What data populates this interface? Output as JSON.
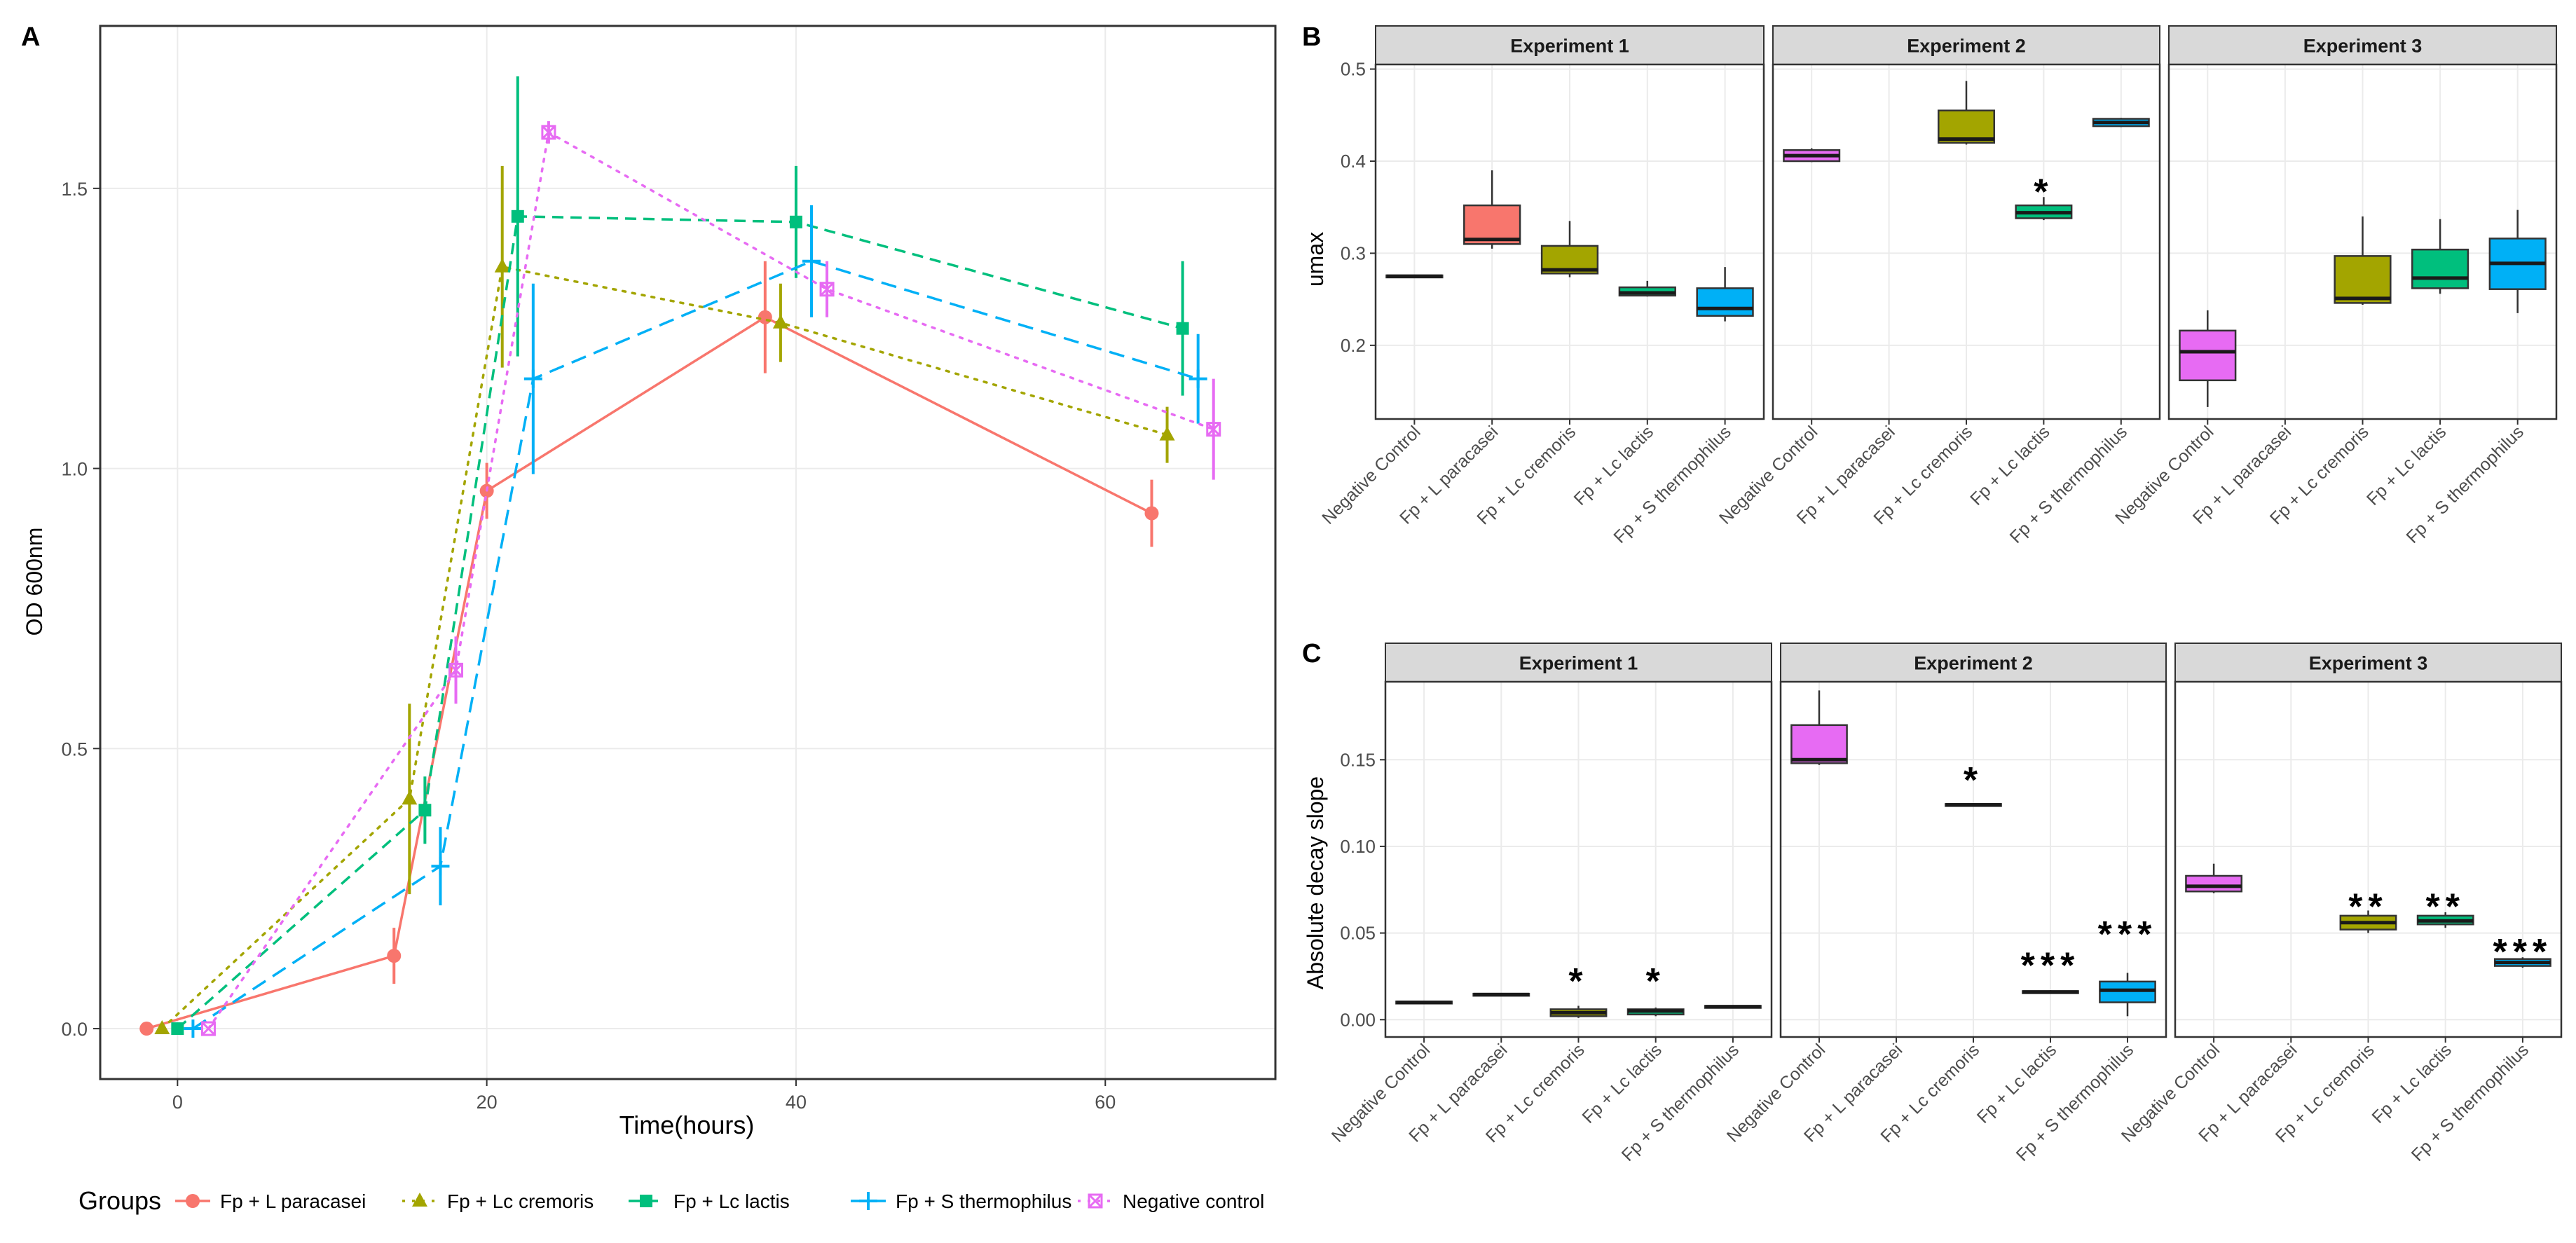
{
  "panel_letters": {
    "a": "A",
    "b": "B",
    "c": "C"
  },
  "colors": {
    "Fp + L paracasei": "#F8766D",
    "Fp + Lc cremoris": "#A3A500",
    "Fp + Lc lactis": "#00BF7D",
    "Fp + S thermophilus": "#00B0F6",
    "Negative control": "#E76BF3",
    "grid": "#EBEBEB",
    "strip": "#D9D9D9"
  },
  "chart_data": [
    {
      "id": "A",
      "type": "line",
      "xlabel": "Time(hours)",
      "ylabel": "OD 600nm",
      "xlim": [
        -5,
        71
      ],
      "ylim": [
        -0.09,
        1.79
      ],
      "xticks": [
        0,
        20,
        40,
        60
      ],
      "yticks": [
        0.0,
        0.5,
        1.0,
        1.5
      ],
      "ytick_labels": [
        "0.0",
        "0.5",
        "1.0",
        "1.5"
      ],
      "legend_title": "Groups",
      "legend_position": "bottom",
      "series": [
        {
          "name": "Fp + L paracasei",
          "marker": "circle",
          "dash": "solid",
          "x": [
            -2,
            14,
            20,
            38,
            63
          ],
          "y": [
            0.0,
            0.13,
            0.96,
            1.27,
            0.92
          ],
          "err": [
            0.0,
            0.05,
            0.05,
            0.1,
            0.06
          ]
        },
        {
          "name": "Fp + Lc cremoris",
          "marker": "triangle",
          "dash": "dotted",
          "x": [
            -1,
            15,
            21,
            39,
            64
          ],
          "y": [
            0.0,
            0.41,
            1.36,
            1.26,
            1.06
          ],
          "err": [
            0.0,
            0.17,
            0.18,
            0.07,
            0.05
          ]
        },
        {
          "name": "Fp + Lc lactis",
          "marker": "square",
          "dash": "dashed",
          "x": [
            0,
            16,
            22,
            40,
            65
          ],
          "y": [
            0.0,
            0.39,
            1.45,
            1.44,
            1.25
          ],
          "err": [
            0.0,
            0.06,
            0.25,
            0.1,
            0.12
          ]
        },
        {
          "name": "Fp + S thermophilus",
          "marker": "plus",
          "dash": "longdash",
          "x": [
            1,
            17,
            23,
            41,
            66
          ],
          "y": [
            0.0,
            0.29,
            1.16,
            1.37,
            1.16
          ],
          "err": [
            0.0,
            0.07,
            0.17,
            0.1,
            0.08
          ]
        },
        {
          "name": "Negative control",
          "marker": "squarecross",
          "dash": "dotted",
          "x": [
            2,
            18,
            24,
            42,
            67
          ],
          "y": [
            0.0,
            0.64,
            1.6,
            1.32,
            1.07
          ],
          "err": [
            0.0,
            0.06,
            0.02,
            0.05,
            0.09
          ]
        }
      ]
    },
    {
      "id": "B",
      "type": "box",
      "ylabel": "umax",
      "ylim": [
        0.12,
        0.505
      ],
      "yticks": [
        0.2,
        0.3,
        0.4,
        0.5
      ],
      "ytick_labels": [
        "0.2",
        "0.3",
        "0.4",
        "0.5"
      ],
      "categories": [
        "Negative Control",
        "Fp + L paracasei",
        "Fp + Lc cremoris",
        "Fp + Lc lactis",
        "Fp + S thermophilus"
      ],
      "box_colors": [
        "#E76BF3",
        "#F8766D",
        "#A3A500",
        "#00BF7D",
        "#00B0F6"
      ],
      "facets": [
        {
          "title": "Experiment 1",
          "boxes": [
            {
              "cat": 0,
              "lo": 0.275,
              "q1": 0.275,
              "med": 0.275,
              "q3": 0.276,
              "hi": 0.276,
              "color": "#F8766D",
              "flat": true
            },
            {
              "cat": 1,
              "lo": 0.305,
              "q1": 0.31,
              "med": 0.315,
              "q3": 0.352,
              "hi": 0.39
            },
            {
              "cat": 2,
              "lo": 0.274,
              "q1": 0.278,
              "med": 0.282,
              "q3": 0.308,
              "hi": 0.335
            },
            {
              "cat": 3,
              "lo": 0.253,
              "q1": 0.254,
              "med": 0.257,
              "q3": 0.263,
              "hi": 0.27
            },
            {
              "cat": 4,
              "lo": 0.226,
              "q1": 0.232,
              "med": 0.24,
              "q3": 0.262,
              "hi": 0.285
            }
          ],
          "sig": []
        },
        {
          "title": "Experiment 2",
          "boxes": [
            {
              "cat": 0,
              "lo": 0.399,
              "q1": 0.4,
              "med": 0.406,
              "q3": 0.412,
              "hi": 0.414
            },
            {
              "cat": 2,
              "lo": 0.418,
              "q1": 0.42,
              "med": 0.424,
              "q3": 0.455,
              "hi": 0.487
            },
            {
              "cat": 3,
              "lo": 0.336,
              "q1": 0.338,
              "med": 0.344,
              "q3": 0.352,
              "hi": 0.361
            },
            {
              "cat": 4,
              "lo": 0.437,
              "q1": 0.438,
              "med": 0.442,
              "q3": 0.446,
              "hi": 0.447
            }
          ],
          "sig": [
            {
              "cat": 3,
              "label": "*",
              "y": 0.37
            }
          ]
        },
        {
          "title": "Experiment 3",
          "boxes": [
            {
              "cat": 0,
              "lo": 0.133,
              "q1": 0.162,
              "med": 0.193,
              "q3": 0.216,
              "hi": 0.238
            },
            {
              "cat": 2,
              "lo": 0.244,
              "q1": 0.246,
              "med": 0.251,
              "q3": 0.297,
              "hi": 0.34
            },
            {
              "cat": 3,
              "lo": 0.256,
              "q1": 0.262,
              "med": 0.273,
              "q3": 0.304,
              "hi": 0.337
            },
            {
              "cat": 4,
              "lo": 0.235,
              "q1": 0.261,
              "med": 0.289,
              "q3": 0.316,
              "hi": 0.347
            }
          ],
          "sig": []
        }
      ]
    },
    {
      "id": "C",
      "type": "box",
      "ylabel": "Absolute decay slope",
      "ylim": [
        -0.01,
        0.195
      ],
      "yticks": [
        0.0,
        0.05,
        0.1,
        0.15
      ],
      "ytick_labels": [
        "0.00",
        "0.05",
        "0.10",
        "0.15"
      ],
      "categories": [
        "Negative Control",
        "Fp + L paracasei",
        "Fp + Lc cremoris",
        "Fp + Lc lactis",
        "Fp + S thermophilus"
      ],
      "box_colors": [
        "#E76BF3",
        "#F8766D",
        "#A3A500",
        "#00BF7D",
        "#00B0F6"
      ],
      "facets": [
        {
          "title": "Experiment 1",
          "boxes": [
            {
              "cat": 0,
              "lo": 0.009,
              "q1": 0.0095,
              "med": 0.01,
              "q3": 0.0105,
              "hi": 0.011,
              "color": "#A3A500",
              "flat": true
            },
            {
              "cat": 1,
              "lo": 0.014,
              "q1": 0.014,
              "med": 0.0145,
              "q3": 0.015,
              "hi": 0.015,
              "color": "#00BF7D",
              "flat": true
            },
            {
              "cat": 2,
              "lo": 0.001,
              "q1": 0.002,
              "med": 0.004,
              "q3": 0.006,
              "hi": 0.008
            },
            {
              "cat": 3,
              "lo": 0.002,
              "q1": 0.003,
              "med": 0.005,
              "q3": 0.006,
              "hi": 0.007
            },
            {
              "cat": 4,
              "lo": 0.007,
              "q1": 0.007,
              "med": 0.0075,
              "q3": 0.008,
              "hi": 0.008,
              "color": "#00B0F6",
              "flat": true
            }
          ],
          "sig": [
            {
              "cat": 2,
              "label": "*",
              "y": 0.024
            },
            {
              "cat": 3,
              "label": "*",
              "y": 0.024
            }
          ]
        },
        {
          "title": "Experiment 2",
          "boxes": [
            {
              "cat": 0,
              "lo": 0.147,
              "q1": 0.148,
              "med": 0.15,
              "q3": 0.17,
              "hi": 0.19
            },
            {
              "cat": 2,
              "lo": 0.123,
              "q1": 0.1235,
              "med": 0.124,
              "q3": 0.1245,
              "hi": 0.125,
              "flat": true
            },
            {
              "cat": 3,
              "lo": 0.015,
              "q1": 0.0155,
              "med": 0.016,
              "q3": 0.0165,
              "hi": 0.017,
              "flat": true
            },
            {
              "cat": 4,
              "lo": 0.002,
              "q1": 0.01,
              "med": 0.017,
              "q3": 0.022,
              "hi": 0.027
            }
          ],
          "sig": [
            {
              "cat": 2,
              "label": "*",
              "y": 0.14
            },
            {
              "cat": 3,
              "label": "***",
              "y": 0.033
            },
            {
              "cat": 4,
              "label": "***",
              "y": 0.051
            }
          ]
        },
        {
          "title": "Experiment 3",
          "boxes": [
            {
              "cat": 0,
              "lo": 0.073,
              "q1": 0.074,
              "med": 0.077,
              "q3": 0.083,
              "hi": 0.09
            },
            {
              "cat": 2,
              "lo": 0.05,
              "q1": 0.052,
              "med": 0.056,
              "q3": 0.06,
              "hi": 0.063
            },
            {
              "cat": 3,
              "lo": 0.053,
              "q1": 0.055,
              "med": 0.057,
              "q3": 0.06,
              "hi": 0.062
            },
            {
              "cat": 4,
              "lo": 0.03,
              "q1": 0.031,
              "med": 0.033,
              "q3": 0.035,
              "hi": 0.036
            }
          ],
          "sig": [
            {
              "cat": 2,
              "label": "**",
              "y": 0.067
            },
            {
              "cat": 3,
              "label": "**",
              "y": 0.067
            },
            {
              "cat": 4,
              "label": "***",
              "y": 0.041
            }
          ]
        }
      ]
    }
  ]
}
